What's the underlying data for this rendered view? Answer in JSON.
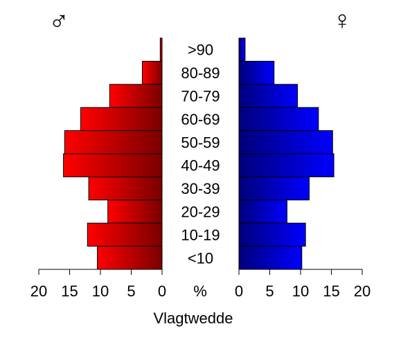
{
  "chart_data": {
    "type": "bar",
    "title": "",
    "xlabel": "Vlagtwedde",
    "center_axis_label": "%",
    "male_symbol": "♂",
    "female_symbol": "♀",
    "categories": [
      ">90",
      "80-89",
      "70-79",
      "60-69",
      "50-59",
      "40-49",
      "30-39",
      "20-29",
      "10-19",
      "<10"
    ],
    "series": [
      {
        "name": "",
        "side": "left",
        "values": [
          0.3,
          3.2,
          8.5,
          13.2,
          15.8,
          16.0,
          11.9,
          8.8,
          12.1,
          10.5
        ],
        "colors": [
          "#ff0000",
          "#7a0000"
        ]
      },
      {
        "name": "",
        "side": "right",
        "values": [
          1.0,
          5.7,
          9.5,
          12.9,
          15.2,
          15.4,
          11.4,
          7.8,
          10.8,
          10.2
        ],
        "colors": [
          "#00007a",
          "#0000ff"
        ]
      }
    ],
    "xlim": [
      0,
      20
    ],
    "ticks": [
      20,
      15,
      10,
      5,
      0
    ],
    "right_ticks": [
      0,
      5,
      10,
      15,
      20
    ]
  }
}
